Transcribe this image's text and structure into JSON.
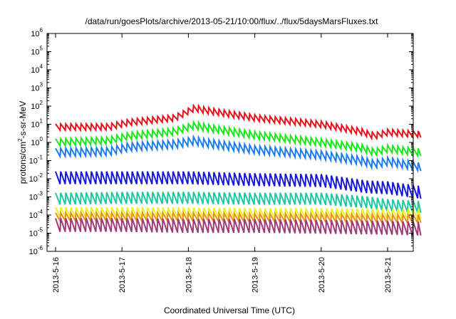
{
  "chart_data": {
    "type": "line",
    "title": "/data/run/goesPlots/archive/2013-05-21/10:00/flux/../flux/5daysMarsFluxes.txt",
    "xlabel": "Coordinated Universal Time (UTC)",
    "ylabel": {
      "prefix": "protons/cm",
      "sup": "2",
      "suffix": "-s-sr-MeV"
    },
    "yscale": "log",
    "ylim_exponents": [
      -6,
      6
    ],
    "y_ticks": [
      {
        "base": "10",
        "exp": "6"
      },
      {
        "base": "10",
        "exp": "5"
      },
      {
        "base": "10",
        "exp": "4"
      },
      {
        "base": "10",
        "exp": "3"
      },
      {
        "base": "10",
        "exp": "2"
      },
      {
        "base": "10",
        "exp": "1"
      },
      {
        "base": "10",
        "exp": "0"
      },
      {
        "base": "10",
        "exp": "-1"
      },
      {
        "base": "10",
        "exp": "-2"
      },
      {
        "base": "10",
        "exp": "-3"
      },
      {
        "base": "10",
        "exp": "-4"
      },
      {
        "base": "10",
        "exp": "-5"
      },
      {
        "base": "10",
        "exp": "-6"
      }
    ],
    "xlim_days": [
      "2013-05-16",
      "2013-05-21 12:00"
    ],
    "x_ticks": [
      "2013-5-16",
      "2013-5-17",
      "2013-5-18",
      "2013-5-19",
      "2013-5-20",
      "2013-5-21"
    ],
    "grid": false,
    "legend": "none",
    "series_style": "sawtooth, ~13 cycles per day",
    "series": [
      {
        "color": "#e8101a",
        "baseline_log": [
          [
            0,
            0.85
          ],
          [
            0.8,
            0.85
          ],
          [
            1.1,
            1.1
          ],
          [
            1.8,
            1.35
          ],
          [
            2.1,
            1.9
          ],
          [
            2.2,
            1.8
          ],
          [
            3,
            1.35
          ],
          [
            4,
            1.0
          ],
          [
            4.6,
            0.6
          ],
          [
            4.8,
            0.35
          ],
          [
            5.0,
            0.55
          ],
          [
            5.5,
            0.45
          ]
        ],
        "amp_log": 0.35
      },
      {
        "color": "#18e818",
        "baseline_log": [
          [
            0,
            0.0
          ],
          [
            0.8,
            0.1
          ],
          [
            1.1,
            0.35
          ],
          [
            1.8,
            0.6
          ],
          [
            2.1,
            0.95
          ],
          [
            2.2,
            0.85
          ],
          [
            3,
            0.4
          ],
          [
            4,
            0.0
          ],
          [
            4.6,
            -0.3
          ],
          [
            4.8,
            -0.55
          ],
          [
            5.0,
            -0.35
          ],
          [
            5.5,
            -0.55
          ]
        ],
        "amp_log": 0.4
      },
      {
        "color": "#1a7cf0",
        "baseline_log": [
          [
            0,
            -0.55
          ],
          [
            0.8,
            -0.5
          ],
          [
            1.1,
            -0.25
          ],
          [
            1.8,
            -0.1
          ],
          [
            2.1,
            0.1
          ],
          [
            2.2,
            0.0
          ],
          [
            3,
            -0.4
          ],
          [
            4,
            -0.7
          ],
          [
            4.6,
            -1.0
          ],
          [
            4.8,
            -1.2
          ],
          [
            5.0,
            -1.05
          ],
          [
            5.5,
            -1.35
          ]
        ],
        "amp_log": 0.45
      },
      {
        "color": "#1818d8",
        "baseline_log": [
          [
            0,
            -1.95
          ],
          [
            1,
            -1.95
          ],
          [
            2,
            -1.95
          ],
          [
            3,
            -2.05
          ],
          [
            4,
            -2.1
          ],
          [
            4.7,
            -2.45
          ],
          [
            5,
            -2.5
          ],
          [
            5.5,
            -2.75
          ]
        ],
        "amp_log": 0.7
      },
      {
        "color": "#20c8a0",
        "baseline_log": [
          [
            0,
            -3.1
          ],
          [
            1,
            -3.05
          ],
          [
            2,
            -3.05
          ],
          [
            3,
            -3.1
          ],
          [
            4,
            -3.1
          ],
          [
            4.7,
            -3.3
          ],
          [
            5,
            -3.45
          ],
          [
            5.5,
            -3.55
          ]
        ],
        "amp_log": 0.65
      },
      {
        "color": "#f0f028",
        "baseline_log": [
          [
            0,
            -3.85
          ],
          [
            1,
            -3.85
          ],
          [
            2,
            -3.85
          ],
          [
            3,
            -3.9
          ],
          [
            4,
            -3.9
          ],
          [
            5,
            -3.95
          ],
          [
            5.5,
            -3.95
          ]
        ],
        "amp_log": 0.55
      },
      {
        "color": "#e89018",
        "baseline_log": [
          [
            0,
            -4.1
          ],
          [
            1,
            -4.1
          ],
          [
            2,
            -4.1
          ],
          [
            3,
            -4.15
          ],
          [
            4,
            -4.15
          ],
          [
            5,
            -4.2
          ],
          [
            5.5,
            -4.2
          ]
        ],
        "amp_log": 0.45
      },
      {
        "color": "#a03a78",
        "baseline_log": [
          [
            0,
            -4.55
          ],
          [
            1,
            -4.55
          ],
          [
            2,
            -4.6
          ],
          [
            3,
            -4.6
          ],
          [
            4,
            -4.65
          ],
          [
            5,
            -4.7
          ],
          [
            5.5,
            -4.75
          ]
        ],
        "amp_log": 0.75
      }
    ]
  }
}
